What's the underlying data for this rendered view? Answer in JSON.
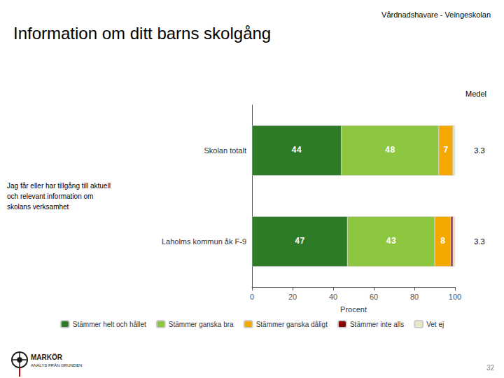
{
  "chart_data": {
    "type": "bar",
    "orientation": "horizontal",
    "stacked": true,
    "title": "Information om ditt barns skolgång",
    "subtitle": "Vårdnadshavare - Veingeskolan",
    "question": "Jag får eller har tillgång till aktuell\noch relevant information om\nskolans verksamhet",
    "xlabel": "Procent",
    "categories": [
      "Skolan totalt",
      "Laholms kommun åk F-9"
    ],
    "series": [
      {
        "name": "Stämmer helt och hållet",
        "color": "#2d7a27",
        "values": [
          44,
          47
        ],
        "value_labels": [
          "44",
          "47"
        ]
      },
      {
        "name": "Stämmer ganska bra",
        "color": "#8dc63f",
        "values": [
          48,
          43
        ],
        "value_labels": [
          "48",
          "43"
        ]
      },
      {
        "name": "Stämmer ganska dåligt",
        "color": "#f5a800",
        "values": [
          7,
          8
        ],
        "value_labels": [
          "7",
          "8"
        ]
      },
      {
        "name": "Stämmer inte alls",
        "color": "#8b0000",
        "values": [
          0,
          1
        ],
        "value_labels": [
          null,
          null
        ]
      },
      {
        "name": "Vet ej",
        "color": "#e8e8c8",
        "values": [
          1,
          1
        ],
        "value_labels": [
          null,
          null
        ]
      }
    ],
    "xlim": [
      0,
      100
    ],
    "xticks": [
      0,
      20,
      40,
      60,
      80,
      100
    ],
    "grid": false,
    "legend": "bottom",
    "data_labels": true,
    "medel_label": "Medel",
    "medel": [
      3.3,
      3.3
    ],
    "page_number": "32",
    "logo_text": "MARKÖR",
    "logo_subtext": "ANALYS FRÅN GRUNDEN"
  }
}
